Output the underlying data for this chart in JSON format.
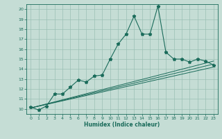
{
  "xlabel": "Humidex (Indice chaleur)",
  "xlim": [
    -0.5,
    23.5
  ],
  "ylim": [
    9.5,
    20.5
  ],
  "xticks": [
    0,
    1,
    2,
    3,
    4,
    5,
    6,
    7,
    8,
    9,
    10,
    11,
    12,
    13,
    14,
    15,
    16,
    17,
    18,
    19,
    20,
    21,
    22,
    23
  ],
  "yticks": [
    10,
    11,
    12,
    13,
    14,
    15,
    16,
    17,
    18,
    19,
    20
  ],
  "background_color": "#c5ddd5",
  "grid_color": "#9bbfb5",
  "line_color": "#1a6b5a",
  "main_x": [
    0,
    1,
    2,
    3,
    4,
    5,
    6,
    7,
    8,
    9,
    10,
    11,
    12,
    13,
    14,
    15,
    16,
    17,
    18,
    19,
    20,
    21,
    22,
    23
  ],
  "main_y": [
    10.2,
    9.9,
    10.3,
    11.5,
    11.5,
    12.2,
    12.9,
    12.7,
    13.3,
    13.4,
    15.0,
    16.5,
    17.5,
    19.3,
    17.5,
    17.5,
    20.3,
    15.7,
    15.0,
    15.0,
    14.7,
    15.0,
    14.8,
    14.4
  ],
  "trend1_x": [
    0,
    23
  ],
  "trend1_y": [
    10.1,
    14.2
  ],
  "trend2_x": [
    0,
    23
  ],
  "trend2_y": [
    10.1,
    14.5
  ],
  "trend3_x": [
    0,
    23
  ],
  "trend3_y": [
    10.1,
    14.8
  ],
  "tick_fontsize": 4.5,
  "xlabel_fontsize": 5.5
}
